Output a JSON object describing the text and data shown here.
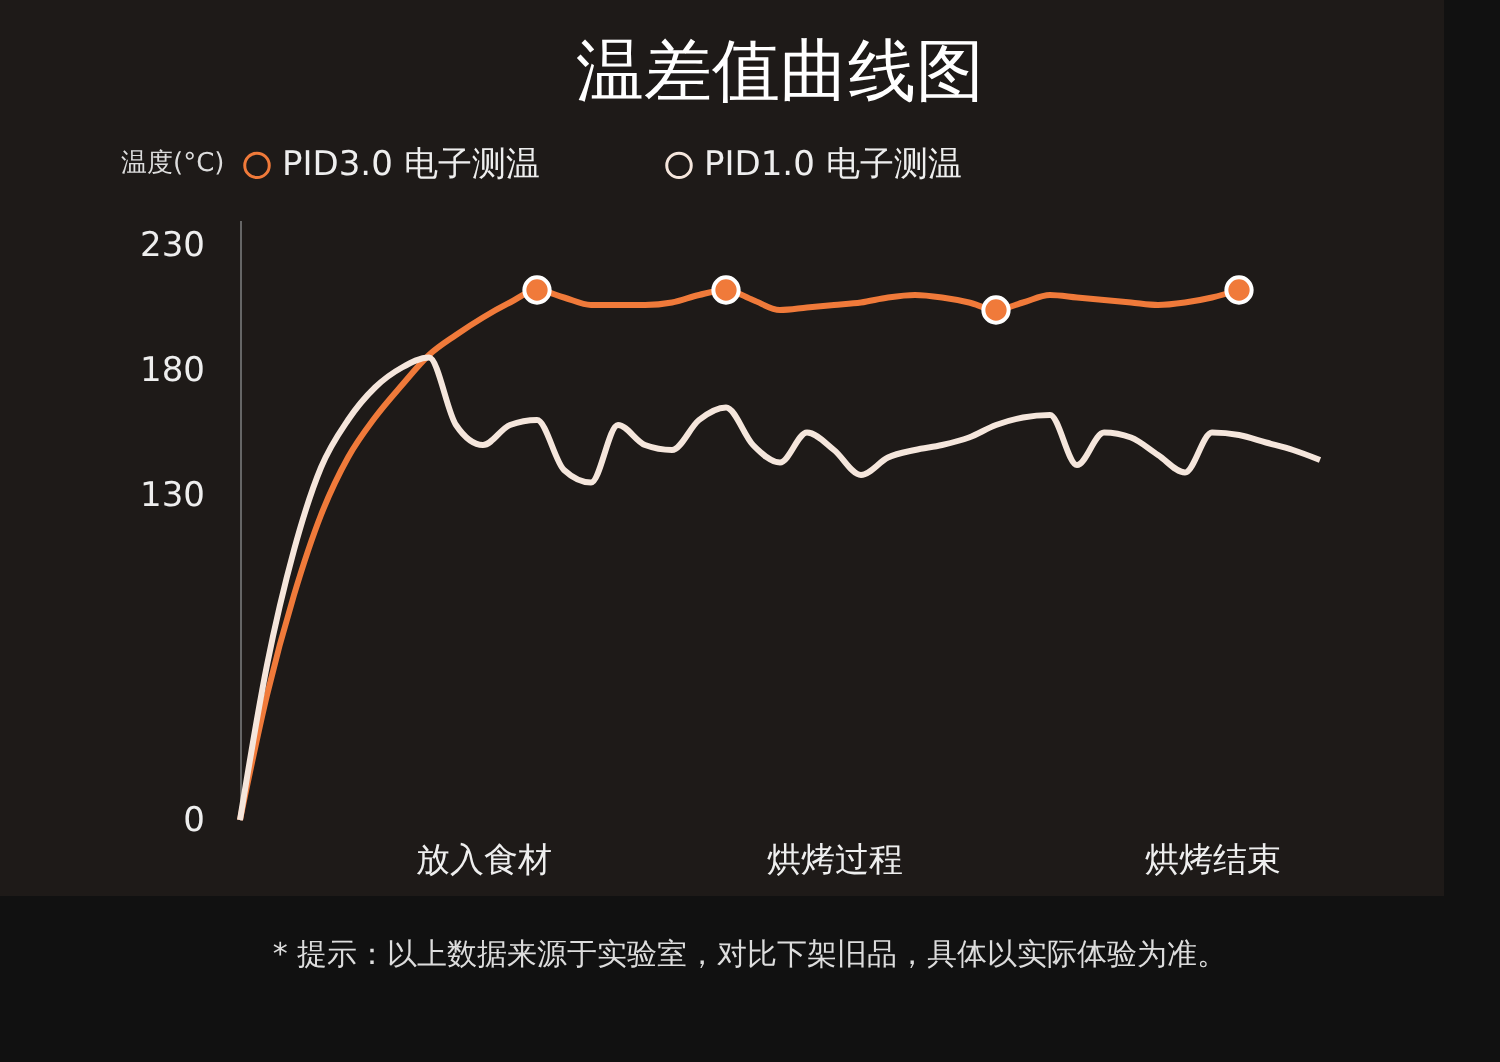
{
  "chart_data": {
    "type": "line",
    "title": "温差值曲线图",
    "ylabel": "温度(°C)",
    "legend": "top",
    "grid": false,
    "categories": [
      null,
      null,
      null,
      null,
      null,
      null,
      null,
      null,
      null,
      "放入食材",
      null,
      null,
      null,
      null,
      null,
      null,
      null,
      null,
      null,
      null,
      null,
      null,
      "烘烤过程",
      null,
      null,
      null,
      null,
      null,
      null,
      null,
      null,
      null,
      null,
      null,
      null,
      null,
      "烘烤结束",
      null,
      null,
      null,
      null
    ],
    "ylim": [
      0,
      240
    ],
    "yticks": [
      0,
      130,
      180,
      230
    ],
    "series": [
      {
        "name": "PID3.0 电子测温",
        "color": "#f07a3a",
        "values": [
          0,
          50,
          90,
          122,
          145,
          161,
          174,
          186,
          194,
          201,
          207,
          212,
          209,
          206,
          206,
          206,
          207,
          210,
          212,
          208,
          204,
          205,
          206,
          207,
          209,
          210,
          209,
          207,
          204,
          207,
          210,
          209,
          208,
          207,
          206,
          207,
          209,
          212,
          null,
          null,
          null
        ]
      },
      {
        "name": "PID1.0 电子测温",
        "color": "#f5e6dc",
        "values": [
          0,
          62,
          108,
          141,
          160,
          173,
          181,
          185,
          158,
          150,
          158,
          160,
          140,
          135,
          158,
          150,
          148,
          160,
          165,
          150,
          143,
          155,
          148,
          138,
          145,
          148,
          150,
          153,
          158,
          161,
          162,
          142,
          155,
          153,
          146,
          139,
          155,
          154,
          151,
          148,
          144
        ]
      },
      {
        "type": "scatter",
        "color": "#f07a3a",
        "values": [
          null,
          null,
          null,
          null,
          null,
          null,
          null,
          null,
          null,
          null,
          null,
          212,
          null,
          null,
          null,
          null,
          null,
          null,
          212,
          null,
          null,
          null,
          null,
          null,
          null,
          null,
          null,
          null,
          204,
          null,
          null,
          null,
          null,
          null,
          null,
          null,
          null,
          212,
          null,
          null,
          null
        ]
      }
    ],
    "annotations": [
      "* 提示：以上数据来源于实验室，对比下架旧品，具体以实际体验为准。"
    ]
  }
}
